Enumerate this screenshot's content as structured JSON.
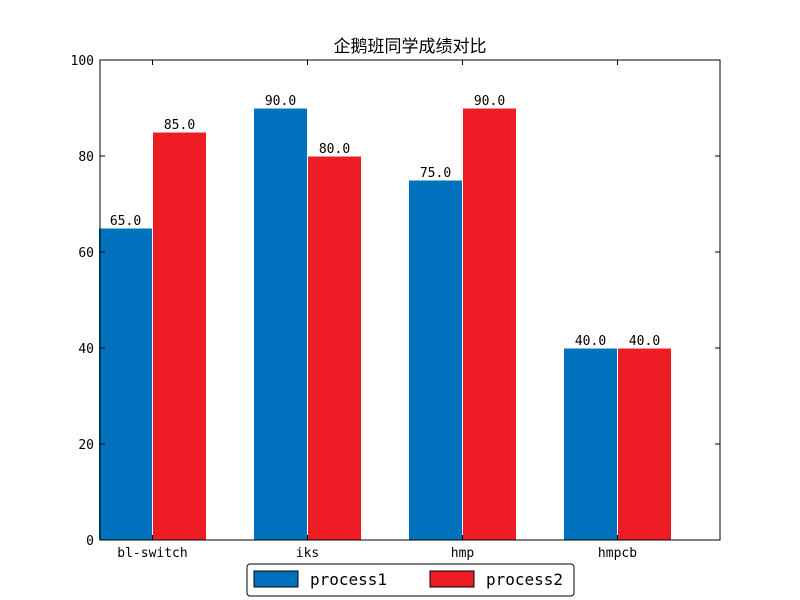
{
  "chart_data": {
    "type": "bar",
    "title": "企鹅班同学成绩对比",
    "categories": [
      "bl-switch",
      "iks",
      "hmp",
      "hmpcb"
    ],
    "series": [
      {
        "name": "process1",
        "values": [
          65.0,
          90.0,
          75.0,
          40.0
        ],
        "color": "#0072BD"
      },
      {
        "name": "process2",
        "values": [
          85.0,
          80.0,
          90.0,
          40.0
        ],
        "color": "#EE1C25"
      }
    ],
    "ylim": [
      0,
      100
    ],
    "yticks": [
      0,
      20,
      40,
      60,
      80,
      100
    ],
    "data_labels": [
      [
        "65.0",
        "90.0",
        "75.0",
        "40.0"
      ],
      [
        "85.0",
        "80.0",
        "90.0",
        "40.0"
      ]
    ],
    "xlabel": "",
    "ylabel": "",
    "grid": false,
    "legend_position": "bottom-center"
  }
}
